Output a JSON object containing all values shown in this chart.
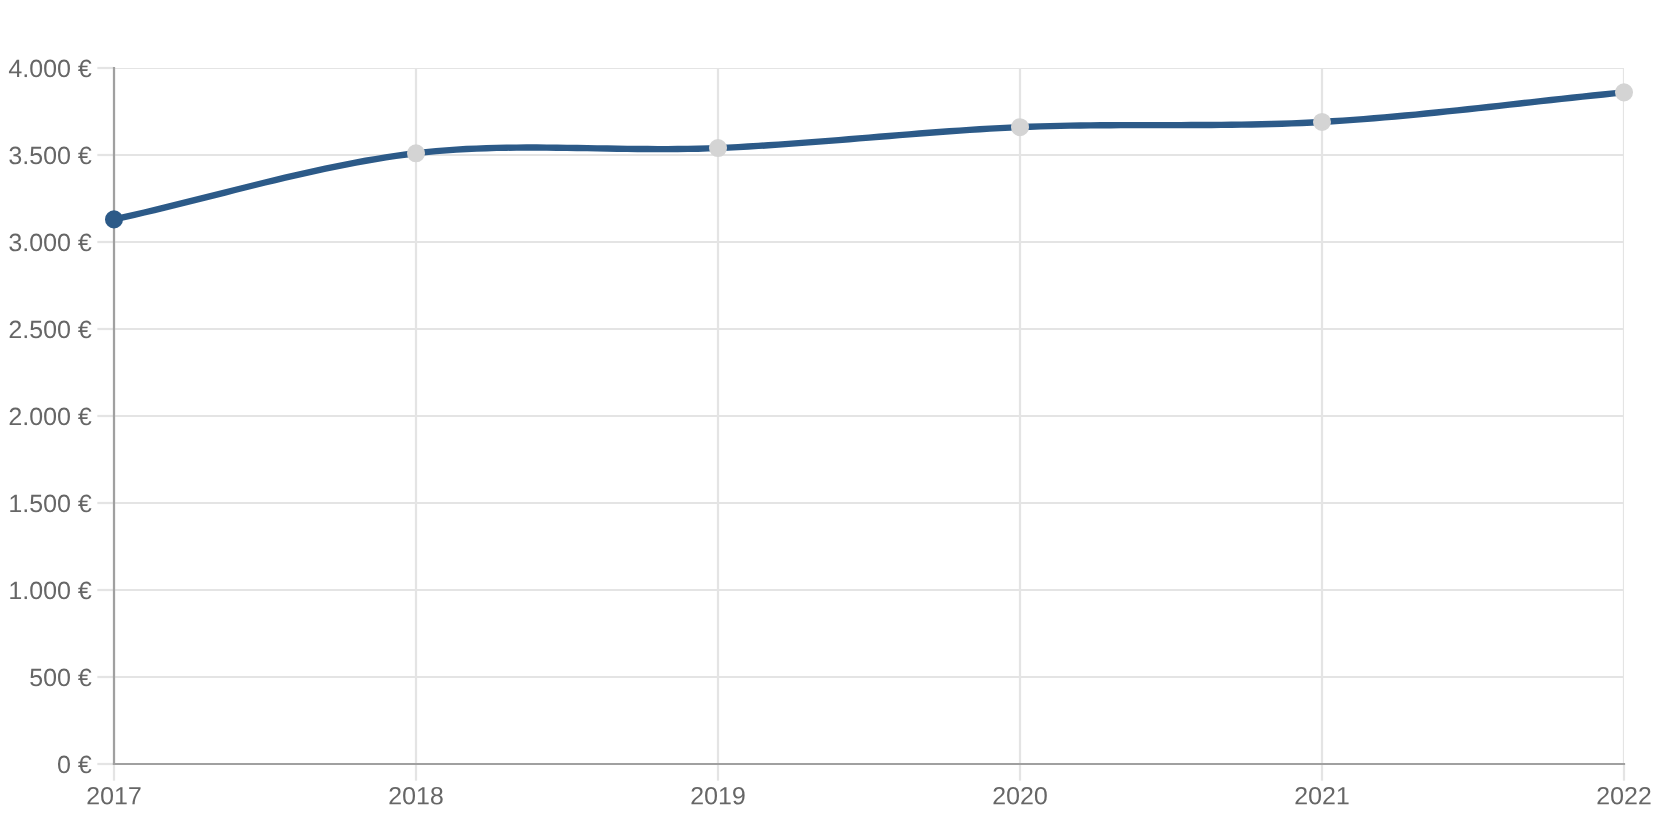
{
  "chart_data": {
    "type": "line",
    "x": [
      2017,
      2018,
      2019,
      2020,
      2021,
      2022
    ],
    "series": [
      {
        "color": "#2c5a88",
        "values": [
          3130,
          3510,
          3540,
          3660,
          3690,
          3860
        ],
        "colors": [
          "#2c5a88",
          "#d4d4d4",
          "#d4d4d4",
          "#d4d4d4",
          "#d4d4d4",
          "#d4d4d4"
        ]
      }
    ],
    "xlim": [
      2017,
      2022
    ],
    "xticks": [
      2017,
      2018,
      2019,
      2020,
      2021,
      2022
    ],
    "ylim": [
      0,
      4000
    ],
    "yticks": [
      {
        "value": 0,
        "label": "0 €"
      },
      {
        "value": 500,
        "label": "500 €"
      },
      {
        "value": 1000,
        "label": "1.000 €"
      },
      {
        "value": 1500,
        "label": "1.500 €"
      },
      {
        "value": 2000,
        "label": "2.000 €"
      },
      {
        "value": 2500,
        "label": "2.500 €"
      },
      {
        "value": 3000,
        "label": "3.000 €"
      },
      {
        "value": 3500,
        "label": "3.500 €"
      },
      {
        "value": 4000,
        "label": "4.000 €"
      }
    ],
    "grid": true,
    "marker": "circle",
    "line_style": "solid"
  }
}
